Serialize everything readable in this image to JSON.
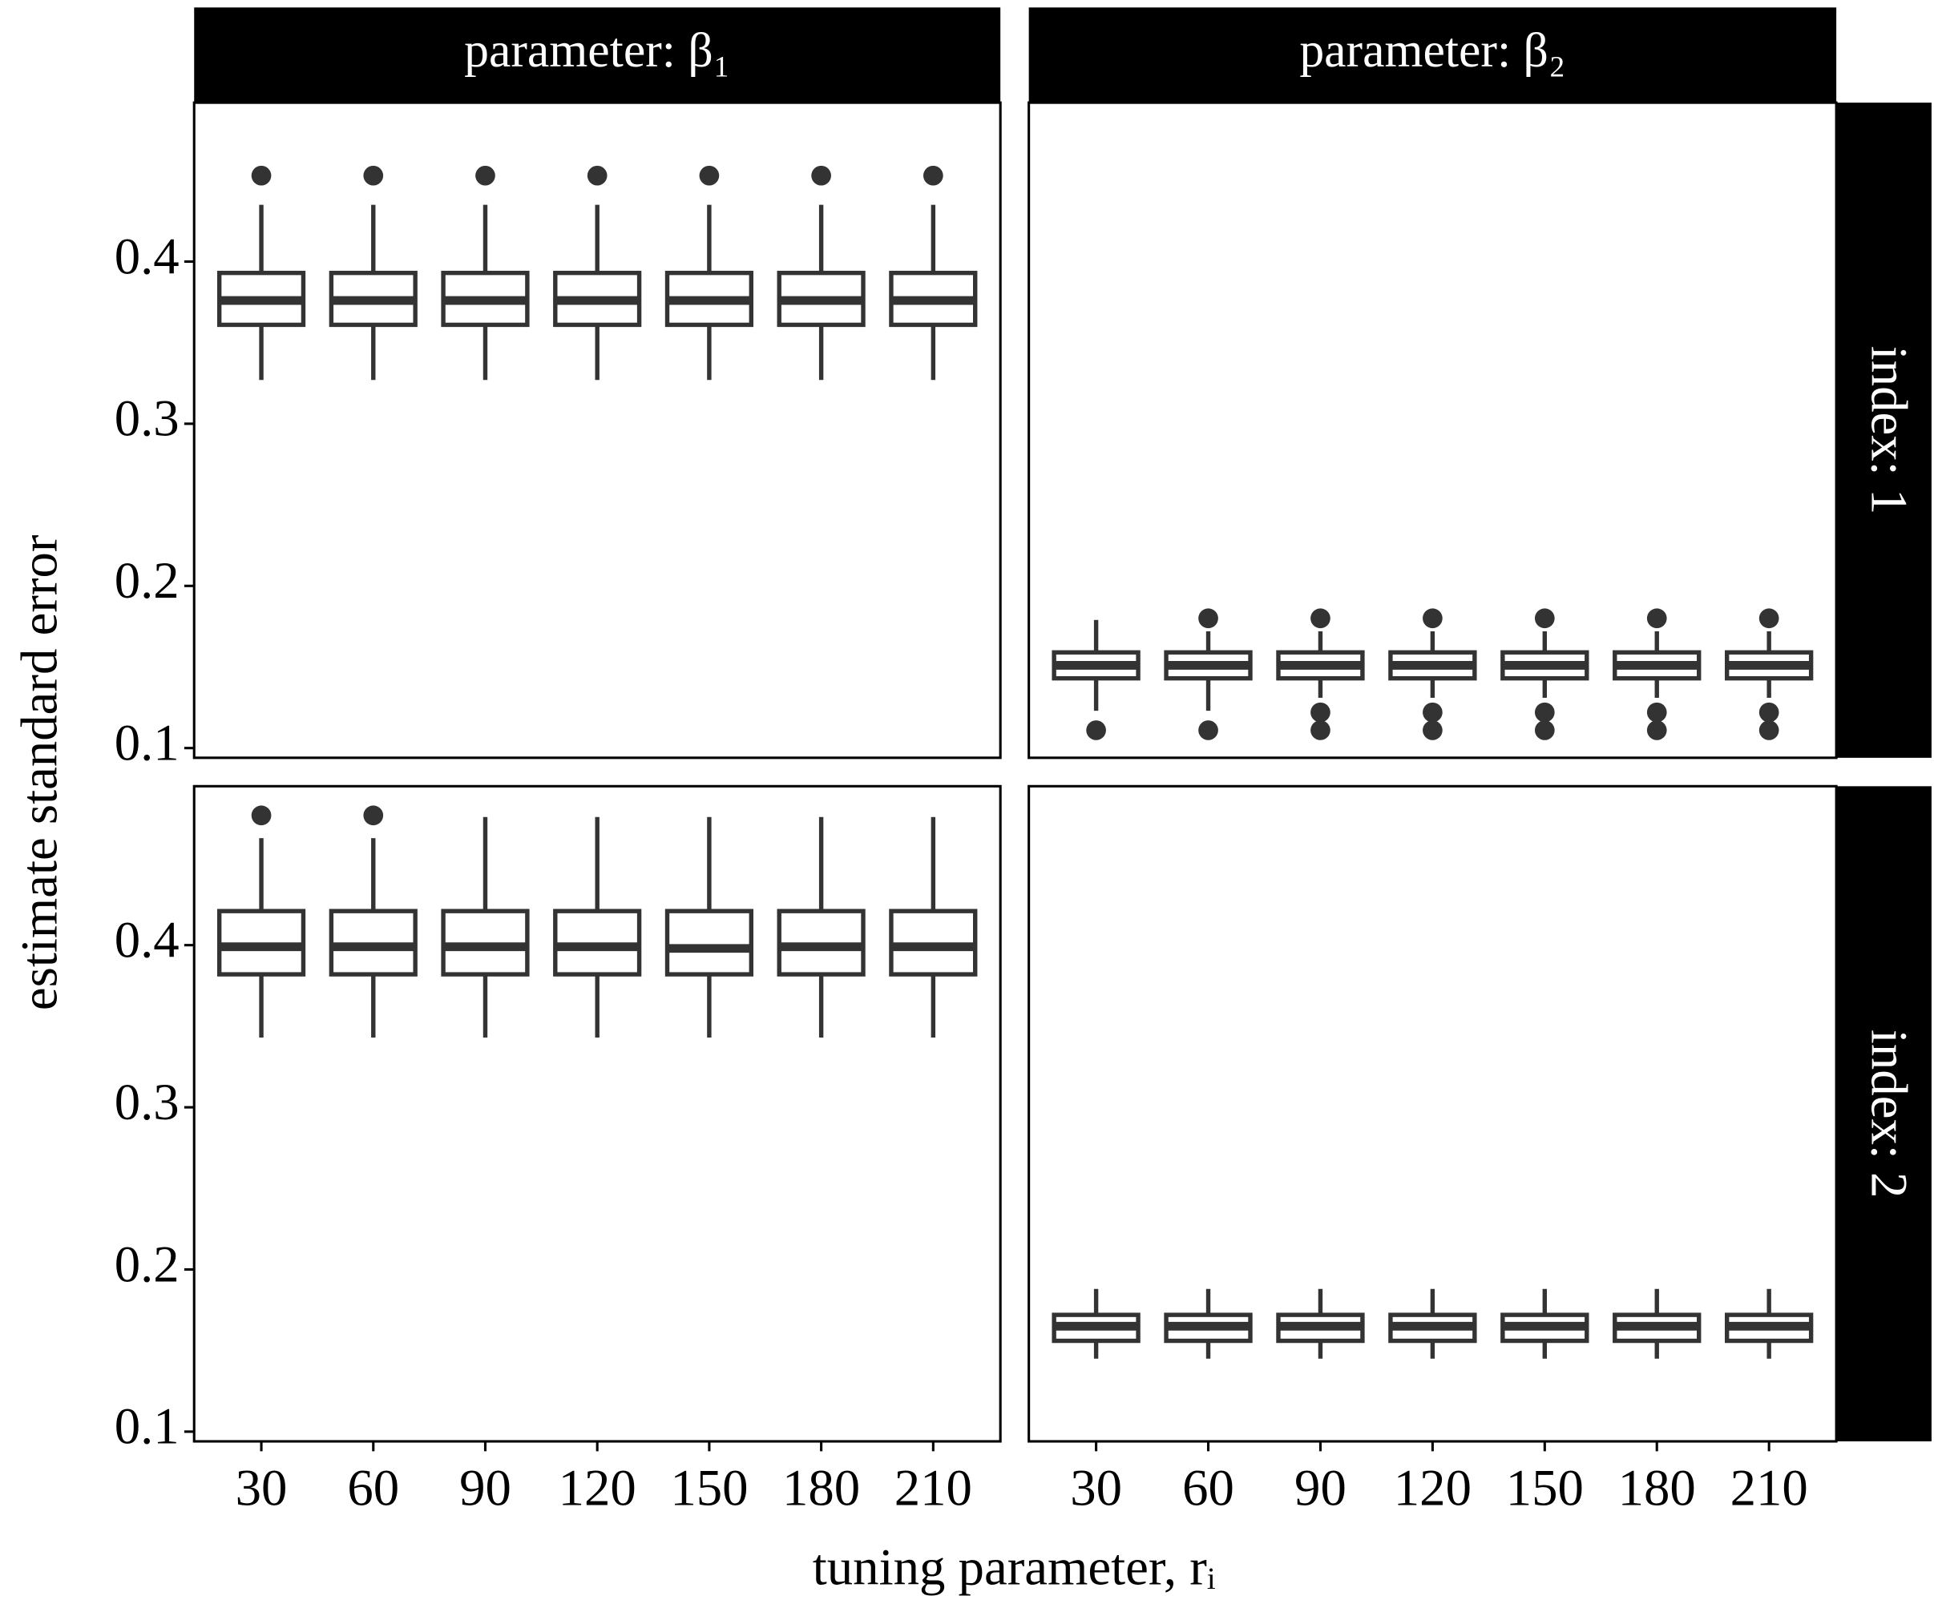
{
  "xlabel": "tuning parameter, rᵢ",
  "ylabel": "estimate standard error",
  "chart_data": [
    {
      "type": "box",
      "facet_col": "parameter: β₁",
      "color": "#333333",
      "fill": "#ffffff",
      "ylim": [
        0.094,
        0.498
      ],
      "yticks": [
        0.1,
        0.2,
        0.3,
        0.4
      ],
      "boxes": [
        {
          "min": 0.327,
          "q1": 0.361,
          "median": 0.376,
          "q3": 0.393,
          "max": 0.435,
          "outliers": [
            0.453
          ]
        },
        {
          "min": 0.327,
          "q1": 0.361,
          "median": 0.376,
          "q3": 0.393,
          "max": 0.435,
          "outliers": [
            0.453
          ]
        },
        {
          "min": 0.327,
          "q1": 0.361,
          "median": 0.376,
          "q3": 0.393,
          "max": 0.435,
          "outliers": [
            0.453
          ]
        },
        {
          "min": 0.327,
          "q1": 0.361,
          "median": 0.376,
          "q3": 0.393,
          "max": 0.435,
          "outliers": [
            0.453
          ]
        },
        {
          "min": 0.327,
          "q1": 0.361,
          "median": 0.376,
          "q3": 0.393,
          "max": 0.435,
          "outliers": [
            0.453
          ]
        },
        {
          "min": 0.327,
          "q1": 0.361,
          "median": 0.376,
          "q3": 0.393,
          "max": 0.435,
          "outliers": [
            0.453
          ]
        },
        {
          "min": 0.327,
          "q1": 0.361,
          "median": 0.376,
          "q3": 0.393,
          "max": 0.435,
          "outliers": [
            0.453
          ]
        }
      ]
    },
    {
      "type": "box",
      "facet_col": "parameter: β₂",
      "facet_row": "index: 1",
      "color": "#333333",
      "fill": "#ffffff",
      "ylim": [
        0.094,
        0.498
      ],
      "boxes": [
        {
          "min": 0.123,
          "q1": 0.143,
          "median": 0.151,
          "q3": 0.159,
          "max": 0.179,
          "outliers": [
            0.111
          ]
        },
        {
          "min": 0.123,
          "q1": 0.143,
          "median": 0.151,
          "q3": 0.159,
          "max": 0.172,
          "outliers": [
            0.111,
            0.18
          ]
        },
        {
          "min": 0.131,
          "q1": 0.143,
          "median": 0.151,
          "q3": 0.159,
          "max": 0.172,
          "outliers": [
            0.111,
            0.122,
            0.18
          ]
        },
        {
          "min": 0.131,
          "q1": 0.143,
          "median": 0.151,
          "q3": 0.159,
          "max": 0.172,
          "outliers": [
            0.111,
            0.122,
            0.18
          ]
        },
        {
          "min": 0.131,
          "q1": 0.143,
          "median": 0.151,
          "q3": 0.159,
          "max": 0.172,
          "outliers": [
            0.111,
            0.122,
            0.18
          ]
        },
        {
          "min": 0.131,
          "q1": 0.143,
          "median": 0.151,
          "q3": 0.159,
          "max": 0.172,
          "outliers": [
            0.111,
            0.122,
            0.18
          ]
        },
        {
          "min": 0.131,
          "q1": 0.143,
          "median": 0.151,
          "q3": 0.159,
          "max": 0.172,
          "outliers": [
            0.111,
            0.122,
            0.18
          ]
        }
      ]
    },
    {
      "type": "box",
      "color": "#333333",
      "fill": "#ffffff",
      "ylim": [
        0.094,
        0.498
      ],
      "yticks": [
        0.1,
        0.2,
        0.3,
        0.4
      ],
      "categories": [
        "30",
        "60",
        "90",
        "120",
        "150",
        "180",
        "210"
      ],
      "boxes": [
        {
          "min": 0.343,
          "q1": 0.382,
          "median": 0.399,
          "q3": 0.421,
          "max": 0.466,
          "outliers": [
            0.48
          ]
        },
        {
          "min": 0.343,
          "q1": 0.382,
          "median": 0.399,
          "q3": 0.421,
          "max": 0.466,
          "outliers": [
            0.48
          ]
        },
        {
          "min": 0.343,
          "q1": 0.382,
          "median": 0.399,
          "q3": 0.421,
          "max": 0.479,
          "outliers": []
        },
        {
          "min": 0.343,
          "q1": 0.382,
          "median": 0.399,
          "q3": 0.421,
          "max": 0.479,
          "outliers": []
        },
        {
          "min": 0.343,
          "q1": 0.382,
          "median": 0.398,
          "q3": 0.421,
          "max": 0.479,
          "outliers": []
        },
        {
          "min": 0.343,
          "q1": 0.382,
          "median": 0.399,
          "q3": 0.421,
          "max": 0.479,
          "outliers": []
        },
        {
          "min": 0.343,
          "q1": 0.382,
          "median": 0.399,
          "q3": 0.421,
          "max": 0.479,
          "outliers": []
        }
      ]
    },
    {
      "type": "box",
      "facet_row": "index: 2",
      "color": "#333333",
      "fill": "#ffffff",
      "ylim": [
        0.094,
        0.498
      ],
      "categories": [
        "30",
        "60",
        "90",
        "120",
        "150",
        "180",
        "210"
      ],
      "boxes": [
        {
          "min": 0.145,
          "q1": 0.156,
          "median": 0.165,
          "q3": 0.172,
          "max": 0.188,
          "outliers": []
        },
        {
          "min": 0.145,
          "q1": 0.156,
          "median": 0.165,
          "q3": 0.172,
          "max": 0.188,
          "outliers": []
        },
        {
          "min": 0.145,
          "q1": 0.156,
          "median": 0.165,
          "q3": 0.172,
          "max": 0.188,
          "outliers": []
        },
        {
          "min": 0.145,
          "q1": 0.156,
          "median": 0.165,
          "q3": 0.172,
          "max": 0.188,
          "outliers": []
        },
        {
          "min": 0.145,
          "q1": 0.156,
          "median": 0.165,
          "q3": 0.172,
          "max": 0.188,
          "outliers": []
        },
        {
          "min": 0.145,
          "q1": 0.156,
          "median": 0.165,
          "q3": 0.172,
          "max": 0.188,
          "outliers": []
        },
        {
          "min": 0.145,
          "q1": 0.156,
          "median": 0.165,
          "q3": 0.172,
          "max": 0.188,
          "outliers": []
        }
      ]
    }
  ]
}
